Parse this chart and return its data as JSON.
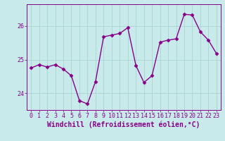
{
  "x": [
    0,
    1,
    2,
    3,
    4,
    5,
    6,
    7,
    8,
    9,
    10,
    11,
    12,
    13,
    14,
    15,
    16,
    17,
    18,
    19,
    20,
    21,
    22,
    23
  ],
  "y": [
    24.75,
    24.85,
    24.78,
    24.85,
    24.72,
    24.52,
    23.78,
    23.68,
    24.35,
    25.68,
    25.73,
    25.78,
    25.95,
    24.83,
    24.32,
    24.52,
    25.52,
    25.58,
    25.62,
    26.35,
    26.33,
    25.83,
    25.58,
    25.18
  ],
  "line_color": "#880088",
  "marker": "D",
  "markersize": 2.5,
  "linewidth": 1.0,
  "xlabel": "Windchill (Refroidissement éolien,°C)",
  "xlabel_fontsize": 7,
  "ylim": [
    23.5,
    26.65
  ],
  "yticks": [
    24,
    25,
    26
  ],
  "xticks": [
    0,
    1,
    2,
    3,
    4,
    5,
    6,
    7,
    8,
    9,
    10,
    11,
    12,
    13,
    14,
    15,
    16,
    17,
    18,
    19,
    20,
    21,
    22,
    23
  ],
  "background_color": "#c8eaea",
  "grid_color": "#aad4d4",
  "tick_label_fontsize": 6,
  "tick_color": "#880088"
}
